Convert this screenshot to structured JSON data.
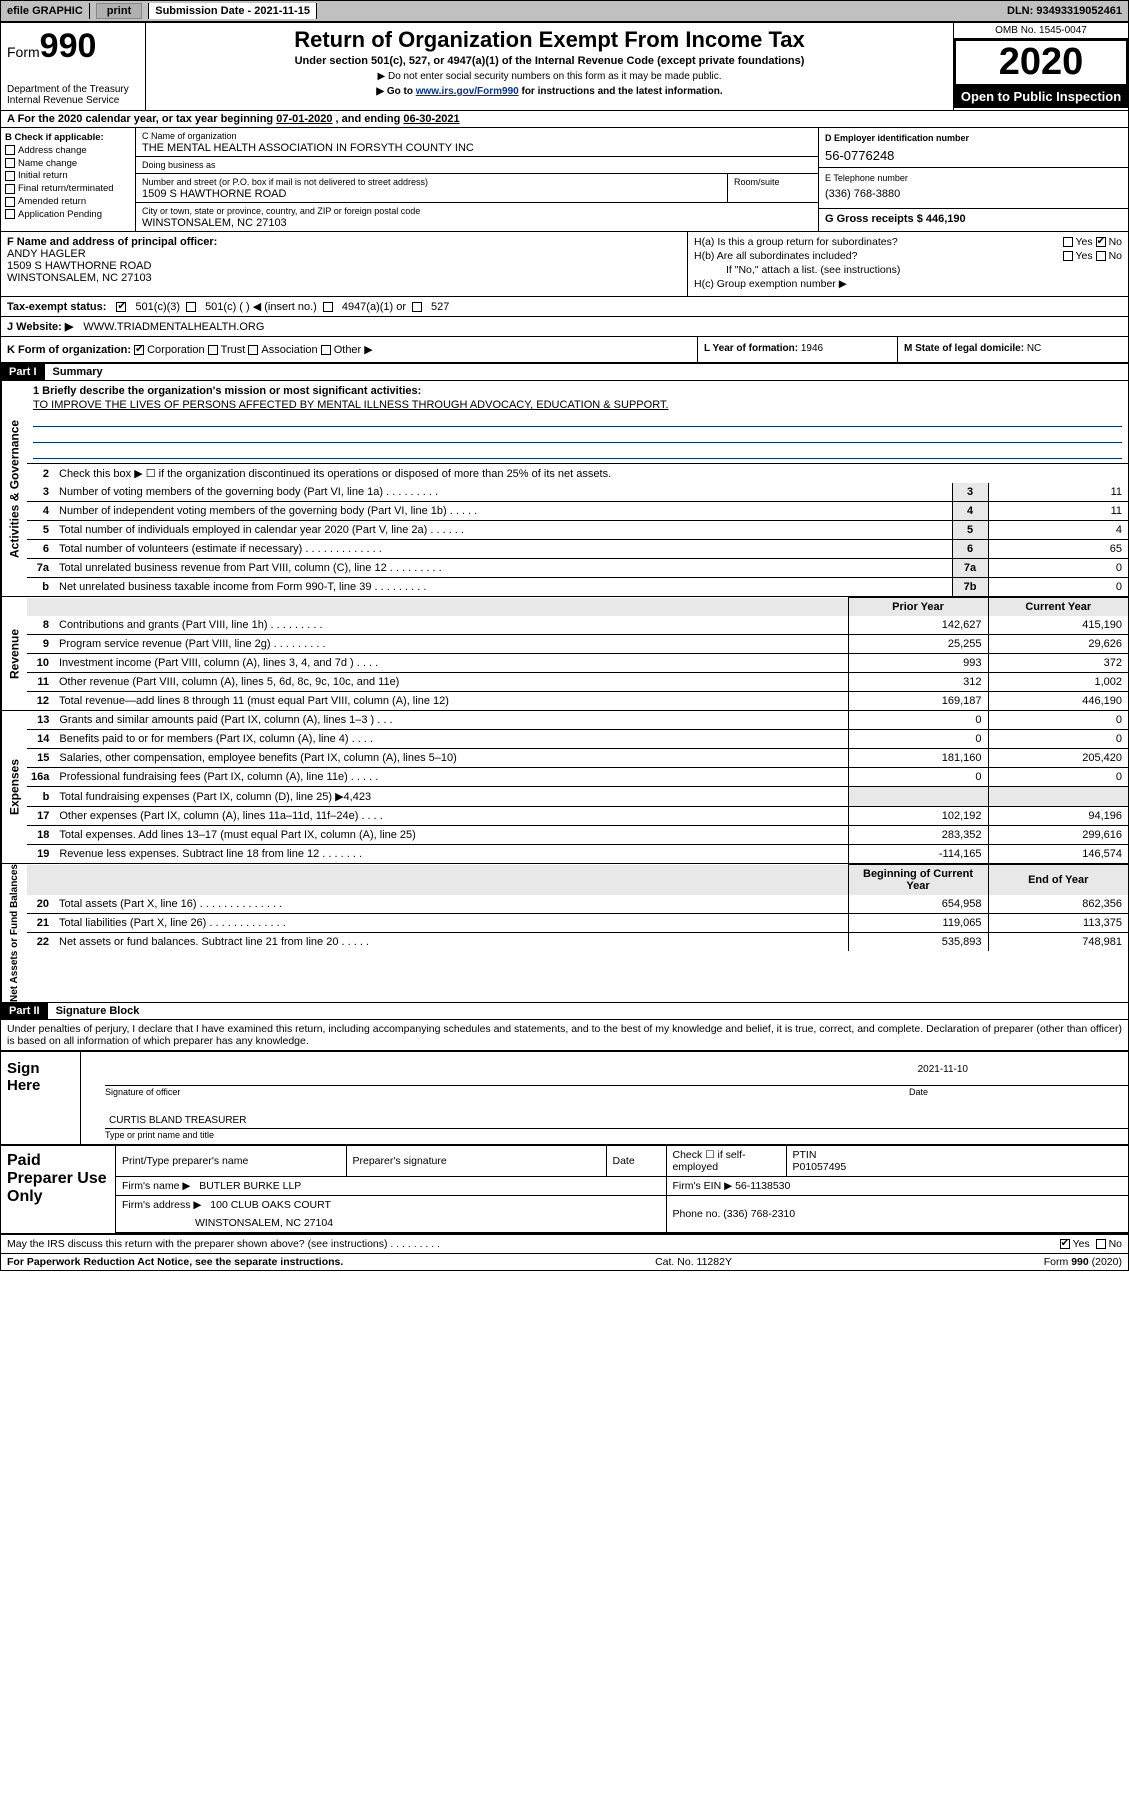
{
  "topbar": {
    "efile": "efile GRAPHIC",
    "print": "print",
    "subdate_label": "Submission Date - ",
    "subdate": "2021-11-15",
    "dln_label": "DLN: ",
    "dln": "93493319052461"
  },
  "header": {
    "form_label": "Form",
    "form_no": "990",
    "title": "Return of Organization Exempt From Income Tax",
    "subtitle": "Under section 501(c), 527, or 4947(a)(1) of the Internal Revenue Code (except private foundations)",
    "note1": "▶ Do not enter social security numbers on this form as it may be made public.",
    "note2_pre": "▶ Go to ",
    "note2_link": "www.irs.gov/Form990",
    "note2_post": " for instructions and the latest information.",
    "dept": "Department of the Treasury\nInternal Revenue Service",
    "omb": "OMB No. 1545-0047",
    "year": "2020",
    "otp": "Open to Public Inspection"
  },
  "period": {
    "prefix": "A For the 2020 calendar year, or tax year beginning ",
    "begin": "07-01-2020",
    "mid": " , and ending ",
    "end": "06-30-2021"
  },
  "B": {
    "heading": "B Check if applicable:",
    "opts": [
      "Address change",
      "Name change",
      "Initial return",
      "Final return/terminated",
      "Amended return",
      "Application Pending"
    ]
  },
  "C": {
    "name_label": "C Name of organization",
    "name": "THE MENTAL HEALTH ASSOCIATION IN FORSYTH COUNTY INC",
    "dba_label": "Doing business as",
    "addr_label": "Number and street (or P.O. box if mail is not delivered to street address)",
    "addr": "1509 S HAWTHORNE ROAD",
    "room_label": "Room/suite",
    "city_label": "City or town, state or province, country, and ZIP or foreign postal code",
    "city": "WINSTONSALEM, NC  27103"
  },
  "D": {
    "label": "D Employer identification number",
    "ein": "56-0776248"
  },
  "E": {
    "label": "E Telephone number",
    "tel": "(336) 768-3880"
  },
  "G": {
    "label": "G Gross receipts $ ",
    "val": "446,190"
  },
  "F": {
    "label": "F  Name and address of principal officer:",
    "name": "ANDY HAGLER",
    "addr1": "1509 S HAWTHORNE ROAD",
    "addr2": "WINSTONSALEM, NC  27103"
  },
  "H": {
    "a": "H(a)  Is this a group return for subordinates?",
    "b": "H(b)  Are all subordinates included?",
    "b_note": "If \"No,\" attach a list. (see instructions)",
    "c": "H(c)  Group exemption number ▶",
    "yes": "Yes",
    "no": "No"
  },
  "I": {
    "label": "Tax-exempt status:",
    "opts": [
      "501(c)(3)",
      "501(c) (  ) ◀ (insert no.)",
      "4947(a)(1) or",
      "527"
    ]
  },
  "J": {
    "label": "J Website: ▶",
    "val": "WWW.TRIADMENTALHEALTH.ORG"
  },
  "K": {
    "label": "K Form of organization:",
    "opts": [
      "Corporation",
      "Trust",
      "Association",
      "Other ▶"
    ]
  },
  "L": {
    "label": "L Year of formation: ",
    "val": "1946"
  },
  "M": {
    "label": "M State of legal domicile: ",
    "val": "NC"
  },
  "partI": {
    "badge": "Part I",
    "title": "Summary"
  },
  "gov": {
    "q1_label": "1  Briefly describe the organization's mission or most significant activities:",
    "q1_text": "TO IMPROVE THE LIVES OF PERSONS AFFECTED BY MENTAL ILLNESS THROUGH ADVOCACY, EDUCATION & SUPPORT.",
    "q2": "Check this box ▶ ☐  if the organization discontinued its operations or disposed of more than 25% of its net assets.",
    "rows": [
      {
        "n": "3",
        "d": "Number of voting members of the governing body (Part VI, line 1a)  .    .    .    .    .    .    .    .    .",
        "rn": "3",
        "v": "11"
      },
      {
        "n": "4",
        "d": "Number of independent voting members of the governing body (Part VI, line 1b)  .    .    .    .    .",
        "rn": "4",
        "v": "11"
      },
      {
        "n": "5",
        "d": "Total number of individuals employed in calendar year 2020 (Part V, line 2a)  .    .    .    .    .    .",
        "rn": "5",
        "v": "4"
      },
      {
        "n": "6",
        "d": "Total number of volunteers (estimate if necessary)  .    .    .    .    .    .    .    .    .    .    .    .    .",
        "rn": "6",
        "v": "65"
      },
      {
        "n": "7a",
        "d": "Total unrelated business revenue from Part VIII, column (C), line 12  .    .    .    .    .    .    .    .    .",
        "rn": "7a",
        "v": "0"
      },
      {
        "n": "b",
        "d": "Net unrelated business taxable income from Form 990-T, line 39  .    .    .    .    .    .    .    .    .",
        "rn": "7b",
        "v": "0"
      }
    ]
  },
  "twoCol": {
    "h_prior": "Prior Year",
    "h_curr": "Current Year",
    "h_boy": "Beginning of Current Year",
    "h_eoy": "End of Year"
  },
  "rev": [
    {
      "n": "8",
      "d": "Contributions and grants (Part VIII, line 1h)  .    .    .    .    .    .    .    .    .",
      "p": "142,627",
      "c": "415,190"
    },
    {
      "n": "9",
      "d": "Program service revenue (Part VIII, line 2g)  .    .    .    .    .    .    .    .    .",
      "p": "25,255",
      "c": "29,626"
    },
    {
      "n": "10",
      "d": "Investment income (Part VIII, column (A), lines 3, 4, and 7d )  .    .    .    .",
      "p": "993",
      "c": "372"
    },
    {
      "n": "11",
      "d": "Other revenue (Part VIII, column (A), lines 5, 6d, 8c, 9c, 10c, and 11e)",
      "p": "312",
      "c": "1,002"
    },
    {
      "n": "12",
      "d": "Total revenue—add lines 8 through 11 (must equal Part VIII, column (A), line 12)",
      "p": "169,187",
      "c": "446,190"
    }
  ],
  "exp": [
    {
      "n": "13",
      "d": "Grants and similar amounts paid (Part IX, column (A), lines 1–3 )  .    .    .",
      "p": "0",
      "c": "0"
    },
    {
      "n": "14",
      "d": "Benefits paid to or for members (Part IX, column (A), line 4)  .    .    .    .",
      "p": "0",
      "c": "0"
    },
    {
      "n": "15",
      "d": "Salaries, other compensation, employee benefits (Part IX, column (A), lines 5–10)",
      "p": "181,160",
      "c": "205,420"
    },
    {
      "n": "16a",
      "d": "Professional fundraising fees (Part IX, column (A), line 11e)  .    .    .    .    .",
      "p": "0",
      "c": "0"
    },
    {
      "n": "b",
      "d": "Total fundraising expenses (Part IX, column (D), line 25) ▶4,423",
      "p": "",
      "c": "",
      "shade": true
    },
    {
      "n": "17",
      "d": "Other expenses (Part IX, column (A), lines 11a–11d, 11f–24e)  .    .    .    .",
      "p": "102,192",
      "c": "94,196"
    },
    {
      "n": "18",
      "d": "Total expenses. Add lines 13–17 (must equal Part IX, column (A), line 25)",
      "p": "283,352",
      "c": "299,616"
    },
    {
      "n": "19",
      "d": "Revenue less expenses. Subtract line 18 from line 12  .    .    .    .    .    .    .",
      "p": "-114,165",
      "c": "146,574"
    }
  ],
  "net": [
    {
      "n": "20",
      "d": "Total assets (Part X, line 16)  .    .    .    .    .    .    .    .    .    .    .    .    .    .",
      "p": "654,958",
      "c": "862,356"
    },
    {
      "n": "21",
      "d": "Total liabilities (Part X, line 26)  .    .    .    .    .    .    .    .    .    .    .    .    .",
      "p": "119,065",
      "c": "113,375"
    },
    {
      "n": "22",
      "d": "Net assets or fund balances. Subtract line 21 from line 20  .    .    .    .    .",
      "p": "535,893",
      "c": "748,981"
    }
  ],
  "partII": {
    "badge": "Part II",
    "title": "Signature Block"
  },
  "penalty": "Under penalties of perjury, I declare that I have examined this return, including accompanying schedules and statements, and to the best of my knowledge and belief, it is true, correct, and complete. Declaration of preparer (other than officer) is based on all information of which preparer has any knowledge.",
  "sign": {
    "here": "Sign Here",
    "sig_of_officer": "Signature of officer",
    "date_label": "Date",
    "date": "2021-11-10",
    "name": "CURTIS BLAND  TREASURER",
    "type_label": "Type or print name and title"
  },
  "paid": {
    "label": "Paid Preparer Use Only",
    "h_prep": "Print/Type preparer's name",
    "h_sig": "Preparer's signature",
    "h_date": "Date",
    "h_check": "Check ☐ if self-employed",
    "h_ptin": "PTIN",
    "ptin": "P01057495",
    "firm_name_l": "Firm's name   ▶",
    "firm_name": "BUTLER BURKE LLP",
    "firm_ein_l": "Firm's EIN ▶ ",
    "firm_ein": "56-1138530",
    "firm_addr_l": "Firm's address ▶",
    "firm_addr1": "100 CLUB OAKS COURT",
    "firm_addr2": "WINSTONSALEM, NC  27104",
    "phone_l": "Phone no. ",
    "phone": "(336) 768-2310"
  },
  "discuss": {
    "q": "May the IRS discuss this return with the preparer shown above? (see instructions)   .     .     .     .     .     .     .     .     .",
    "yes": "Yes",
    "no": "No"
  },
  "footer": {
    "left": "For Paperwork Reduction Act Notice, see the separate instructions.",
    "mid": "Cat. No. 11282Y",
    "right": "Form 990 (2020)"
  },
  "colors": {
    "link": "#003399",
    "shade": "#e8e8e8",
    "topbar": "#c0c0c0"
  }
}
